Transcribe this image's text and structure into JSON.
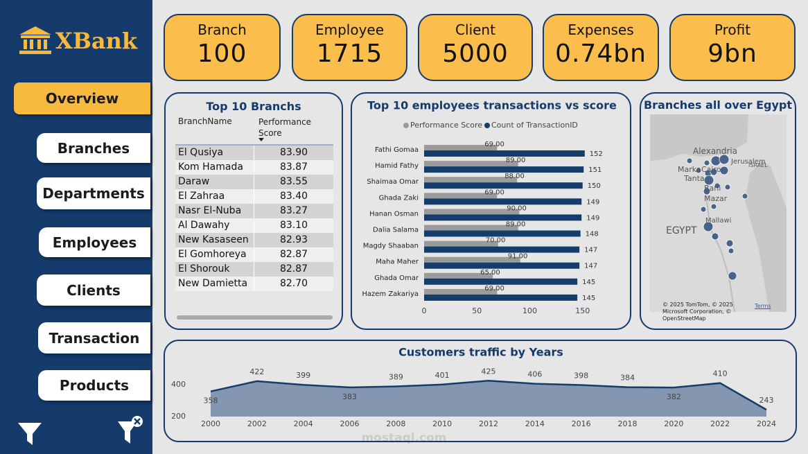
{
  "sidebar": {
    "logo": "XBank",
    "nav": [
      "Overview",
      "Branches",
      "Departments",
      "Employees",
      "Clients",
      "Transaction",
      "Products"
    ]
  },
  "kpis": [
    {
      "label": "Branch",
      "value": "100"
    },
    {
      "label": "Employee",
      "value": "1715"
    },
    {
      "label": "Client",
      "value": "5000"
    },
    {
      "label": "Expenses",
      "value": "0.74bn"
    },
    {
      "label": "Profit",
      "value": "9bn"
    }
  ],
  "table": {
    "title": "Top 10 Branchs",
    "columns": [
      "BranchName",
      "Performance Score"
    ],
    "rows": [
      [
        "El Qusiya",
        "83.90"
      ],
      [
        "Kom Hamada",
        "83.87"
      ],
      [
        "Daraw",
        "83.55"
      ],
      [
        "El Zahraa",
        "83.40"
      ],
      [
        "Nasr El-Nuba",
        "83.27"
      ],
      [
        "Al Dawahy",
        "83.10"
      ],
      [
        "New Kasaseen",
        "82.93"
      ],
      [
        "El Gomhoreya",
        "82.87"
      ],
      [
        "El Shorouk",
        "82.87"
      ],
      [
        "New Damietta",
        "82.70"
      ]
    ]
  },
  "map": {
    "title": "Branches all over Egypt",
    "labels": [
      "Alexandria",
      "Jerusalem",
      "ISRAEL",
      "Marka",
      "Cairo",
      "Tanta",
      "Bani",
      "Mazar",
      "Mallawi",
      "EGYPT"
    ],
    "attribution": "© 2025 TomTom, © 2025 Microsoft Corporation, © OpenStreetMap",
    "terms": "Terms"
  },
  "watermark": "mostaql.com",
  "chart_data": [
    {
      "type": "hbar",
      "title": "Top 10 employees transactions vs score",
      "categories": [
        "Fathi Gomaa",
        "Hamid Fathy",
        "Shaimaa Omar",
        "Ghada Zaki",
        "Hanan Osman",
        "Dalia Salama",
        "Magdy Shaaban",
        "Maha Maher",
        "Ghada Omar",
        "Hazem Zakariya"
      ],
      "series": [
        {
          "name": "Performance Score",
          "color": "#9b9b9b",
          "values": [
            69,
            89,
            88,
            69,
            90,
            89,
            70,
            91,
            65,
            69
          ],
          "value_labels": [
            "69.00",
            "89.00",
            "88.00",
            "69.00",
            "90.00",
            "89.00",
            "70.00",
            "91.00",
            "65.00",
            "69.00"
          ]
        },
        {
          "name": "Count of TransactionID",
          "color": "#143d6b",
          "values": [
            152,
            151,
            150,
            149,
            149,
            148,
            147,
            147,
            145,
            145
          ]
        }
      ],
      "xlim": [
        0,
        160
      ],
      "xticks": [
        0,
        50,
        100,
        150
      ]
    },
    {
      "type": "area",
      "title": "Customers traffic by Years",
      "x": [
        2000,
        2002,
        2004,
        2006,
        2008,
        2010,
        2012,
        2014,
        2016,
        2018,
        2020,
        2022,
        2024
      ],
      "values": [
        358,
        422,
        399,
        383,
        389,
        401,
        425,
        406,
        398,
        384,
        382,
        410,
        243
      ],
      "color": "#143d6b",
      "fill": "#8597b0",
      "xlim": [
        2000,
        2024
      ],
      "xticks": [
        2000,
        2002,
        2004,
        2006,
        2008,
        2010,
        2012,
        2014,
        2016,
        2018,
        2020,
        2022,
        2024
      ],
      "ylim": [
        200,
        500
      ],
      "yticks": [
        200,
        400
      ]
    }
  ]
}
